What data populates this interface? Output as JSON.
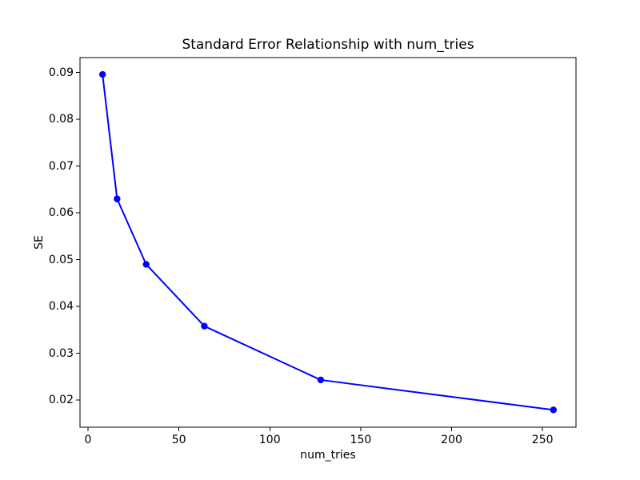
{
  "figure": {
    "background": "#ffffff",
    "text_color": "#000000",
    "spine_color": "#000000"
  },
  "chart_data": {
    "type": "line",
    "title": "Standard Error Relationship with num_tries",
    "xlabel": "num_tries",
    "ylabel": "SE",
    "x": [
      8,
      16,
      32,
      64,
      128,
      256
    ],
    "y": [
      0.0896,
      0.063,
      0.049,
      0.0358,
      0.0243,
      0.0179
    ],
    "line_color": "#0000ff",
    "marker": "circle",
    "marker_color": "#0000ff",
    "grid": false,
    "legend": false,
    "xlim": [
      -4.4,
      268.4
    ],
    "ylim": [
      0.0142,
      0.0932
    ],
    "xticks": {
      "values": [
        0,
        50,
        100,
        150,
        200,
        250
      ],
      "labels": [
        "0",
        "50",
        "100",
        "150",
        "200",
        "250"
      ]
    },
    "yticks": {
      "values": [
        0.02,
        0.03,
        0.04,
        0.05,
        0.06,
        0.07,
        0.08,
        0.09
      ],
      "labels": [
        "0.02",
        "0.03",
        "0.04",
        "0.05",
        "0.06",
        "0.07",
        "0.08",
        "0.09"
      ]
    }
  }
}
